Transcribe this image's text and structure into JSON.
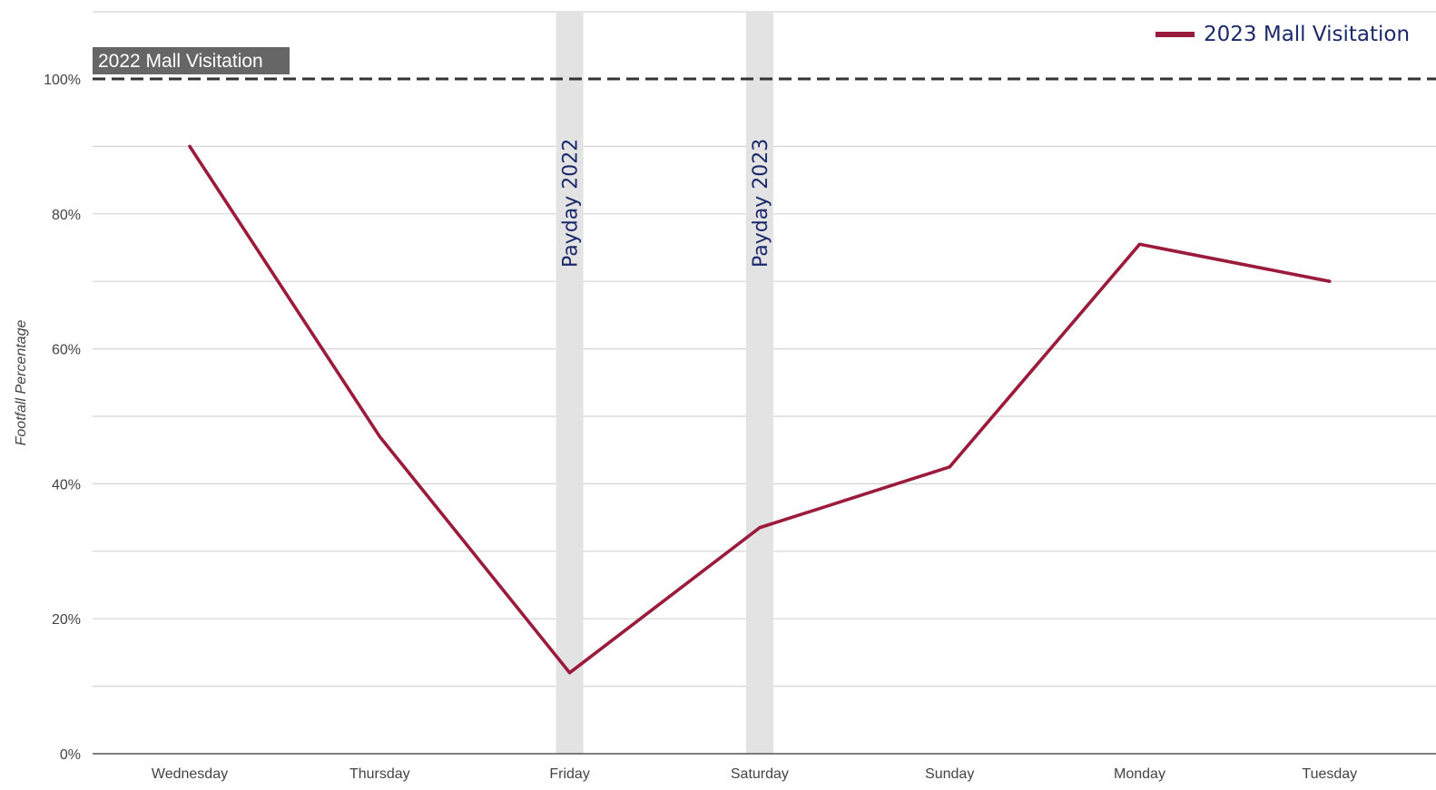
{
  "chart_data": {
    "type": "line",
    "title": "",
    "xlabel": "",
    "ylabel": "Footfall Percentage",
    "ylim": [
      0,
      100
    ],
    "yticks": [
      0,
      20,
      40,
      60,
      80,
      100
    ],
    "ytick_labels": [
      "0%",
      "20%",
      "40%",
      "60%",
      "80%",
      "100%"
    ],
    "grid": true,
    "legend_position": "top-right",
    "categories": [
      "Wednesday",
      "Thursday",
      "Friday",
      "Saturday",
      "Sunday",
      "Monday",
      "Tuesday"
    ],
    "series": [
      {
        "name": "2023 Mall Visitation",
        "values": [
          90,
          47,
          12,
          33.5,
          42.5,
          75.5,
          70
        ],
        "color": "#9b1b3c"
      }
    ],
    "reference_line": {
      "label": "2022 Mall Visitation",
      "value": 100,
      "style": "dashed",
      "color": "#333333"
    },
    "bands": [
      {
        "label": "Payday 2022",
        "category": "Friday"
      },
      {
        "label": "Payday 2023",
        "category": "Saturday"
      }
    ],
    "colors": {
      "series": "#9b1b3c",
      "band": "#e3e3e3",
      "band_text": "#1c2a6b",
      "legend_text": "#1c2a6b",
      "grid": "#d4d4d4",
      "axis": "#555555",
      "ref_label_bg": "#666666"
    }
  }
}
